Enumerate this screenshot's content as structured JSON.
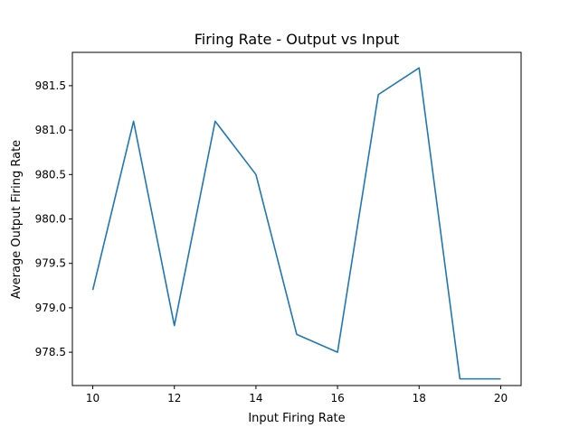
{
  "chart_data": {
    "type": "line",
    "title": "Firing Rate - Output vs Input",
    "xlabel": "Input Firing Rate",
    "ylabel": "Average Output Firing Rate",
    "xlim": [
      9.5,
      20.5
    ],
    "ylim": [
      978.125,
      981.875
    ],
    "xticks": [
      10,
      12,
      14,
      16,
      18,
      20
    ],
    "yticks": [
      978.5,
      979.0,
      979.5,
      980.0,
      980.5,
      981.0,
      981.5
    ],
    "grid": false,
    "series": [
      {
        "color": "#1f77b4",
        "x": [
          10,
          11,
          12,
          13,
          14,
          15,
          16,
          17,
          18,
          19,
          20
        ],
        "y": [
          979.2,
          981.1,
          978.8,
          981.1,
          980.5,
          978.7,
          978.5,
          981.4,
          981.7,
          978.2,
          978.2
        ]
      }
    ]
  }
}
